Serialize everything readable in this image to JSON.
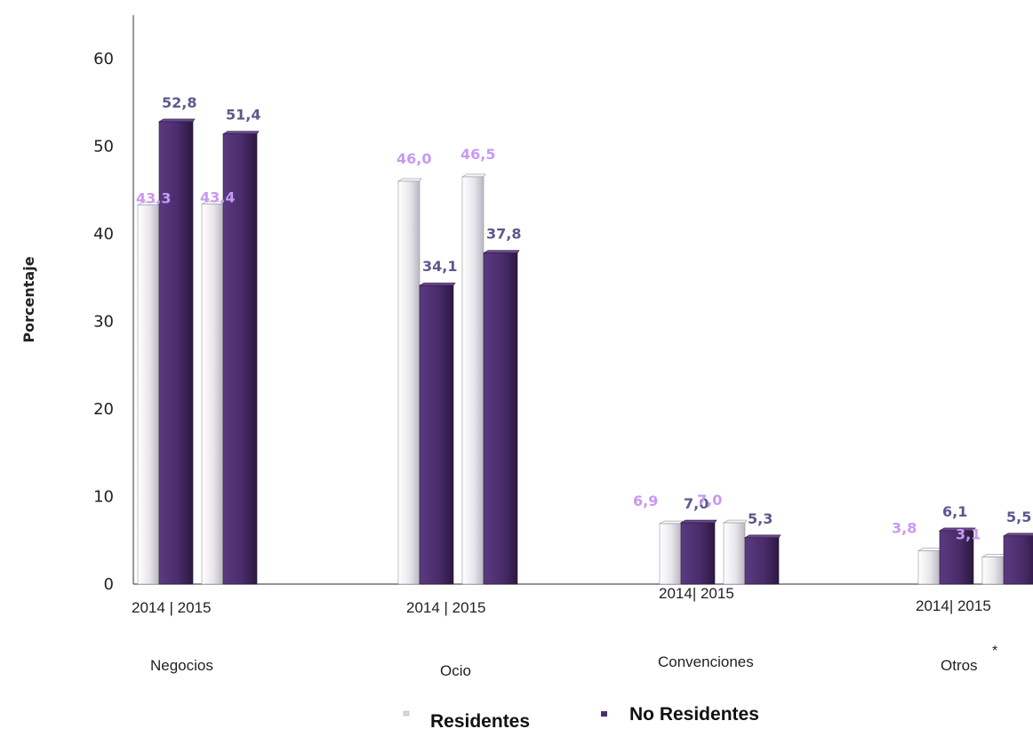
{
  "chart_data": {
    "type": "bar",
    "ylabel": "Porcentaje",
    "ylim": [
      0,
      60
    ],
    "yticks": [
      "0",
      "10",
      "20",
      "30",
      "40",
      "50",
      "60"
    ],
    "categories": [
      {
        "name": "Negocios",
        "years": "2014 |  2015",
        "values": {
          "2014": {
            "residentes": 43.3,
            "no_residentes": 52.8
          },
          "2015": {
            "residentes": 43.4,
            "no_residentes": 51.4
          }
        },
        "labels": {
          "2014": {
            "residentes": "43,3",
            "no_residentes": "52,8"
          },
          "2015": {
            "residentes": "43,4",
            "no_residentes": "51,4"
          }
        }
      },
      {
        "name": "Ocio",
        "years": "2014 |  2015",
        "values": {
          "2014": {
            "residentes": 46.0,
            "no_residentes": 34.1
          },
          "2015": {
            "residentes": 46.5,
            "no_residentes": 37.8
          }
        },
        "labels": {
          "2014": {
            "residentes": "46,0",
            "no_residentes": "34,1"
          },
          "2015": {
            "residentes": "46,5",
            "no_residentes": "37,8"
          }
        }
      },
      {
        "name": "Convenciones",
        "years": "2014|  2015",
        "values": {
          "2014": {
            "residentes": 6.9,
            "no_residentes": 7.0
          },
          "2015": {
            "residentes": 7.0,
            "no_residentes": 5.3
          }
        },
        "labels": {
          "2014": {
            "residentes": "6,9",
            "no_residentes": "7,0"
          },
          "2015": {
            "residentes": "7,0",
            "no_residentes": "5,3"
          }
        }
      },
      {
        "name": "Otros",
        "years": "2014|  2015",
        "footnote": "*",
        "values": {
          "2014": {
            "residentes": 3.8,
            "no_residentes": 6.1
          },
          "2015": {
            "residentes": 3.1,
            "no_residentes": 5.5
          }
        },
        "labels": {
          "2014": {
            "residentes": "3,8",
            "no_residentes": "6,1"
          },
          "2015": {
            "residentes": "3,1",
            "no_residentes": "5,5"
          }
        }
      }
    ],
    "series": [
      {
        "key": "residentes",
        "name": "Residentes",
        "color": "#eceaf0",
        "label_color": "#c79af0"
      },
      {
        "key": "no_residentes",
        "name": "No Residentes",
        "color": "#4b2e6e",
        "label_color": "#5b5a8c"
      }
    ],
    "legend_position": "bottom",
    "grid": false
  }
}
